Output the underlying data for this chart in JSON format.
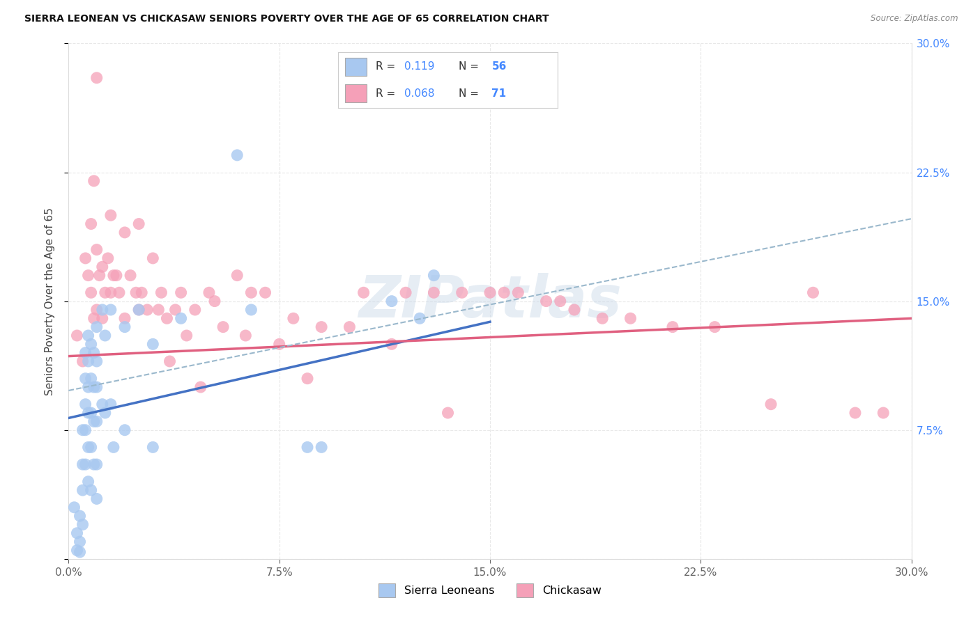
{
  "title": "SIERRA LEONEAN VS CHICKASAW SENIORS POVERTY OVER THE AGE OF 65 CORRELATION CHART",
  "source": "Source: ZipAtlas.com",
  "ylabel": "Seniors Poverty Over the Age of 65",
  "xlim": [
    0.0,
    0.3
  ],
  "ylim": [
    0.0,
    0.3
  ],
  "sl_color": "#a8c8f0",
  "chick_color": "#f5a0b8",
  "sl_line_color": "#4472c4",
  "chick_line_color": "#e06080",
  "combined_line_color": "#9ab8cc",
  "r_sl": "0.119",
  "n_sl": "56",
  "r_ch": "0.068",
  "n_ch": "71",
  "sl_trend_x0": 0.0,
  "sl_trend_y0": 0.082,
  "sl_trend_x1": 0.15,
  "sl_trend_y1": 0.138,
  "ch_trend_x0": 0.0,
  "ch_trend_y0": 0.118,
  "ch_trend_x1": 0.3,
  "ch_trend_y1": 0.14,
  "dash_trend_x0": 0.0,
  "dash_trend_y0": 0.098,
  "dash_trend_x1": 0.3,
  "dash_trend_y1": 0.198,
  "sierra_leonean_x": [
    0.002,
    0.003,
    0.003,
    0.004,
    0.004,
    0.004,
    0.005,
    0.005,
    0.005,
    0.005,
    0.006,
    0.006,
    0.006,
    0.006,
    0.006,
    0.007,
    0.007,
    0.007,
    0.007,
    0.007,
    0.007,
    0.008,
    0.008,
    0.008,
    0.008,
    0.008,
    0.009,
    0.009,
    0.009,
    0.009,
    0.01,
    0.01,
    0.01,
    0.01,
    0.01,
    0.01,
    0.012,
    0.012,
    0.013,
    0.013,
    0.015,
    0.015,
    0.016,
    0.02,
    0.02,
    0.025,
    0.03,
    0.03,
    0.04,
    0.06,
    0.065,
    0.085,
    0.09,
    0.115,
    0.125,
    0.13
  ],
  "sierra_leonean_y": [
    0.03,
    0.015,
    0.005,
    0.025,
    0.01,
    0.004,
    0.075,
    0.055,
    0.04,
    0.02,
    0.12,
    0.105,
    0.09,
    0.075,
    0.055,
    0.13,
    0.115,
    0.1,
    0.085,
    0.065,
    0.045,
    0.125,
    0.105,
    0.085,
    0.065,
    0.04,
    0.12,
    0.1,
    0.08,
    0.055,
    0.135,
    0.115,
    0.1,
    0.08,
    0.055,
    0.035,
    0.145,
    0.09,
    0.13,
    0.085,
    0.145,
    0.09,
    0.065,
    0.135,
    0.075,
    0.145,
    0.125,
    0.065,
    0.14,
    0.235,
    0.145,
    0.065,
    0.065,
    0.15,
    0.14,
    0.165
  ],
  "chickasaw_x": [
    0.003,
    0.005,
    0.006,
    0.007,
    0.008,
    0.008,
    0.009,
    0.009,
    0.01,
    0.01,
    0.01,
    0.011,
    0.012,
    0.012,
    0.013,
    0.014,
    0.015,
    0.015,
    0.016,
    0.017,
    0.018,
    0.02,
    0.02,
    0.022,
    0.024,
    0.025,
    0.025,
    0.026,
    0.028,
    0.03,
    0.032,
    0.033,
    0.035,
    0.036,
    0.038,
    0.04,
    0.042,
    0.045,
    0.047,
    0.05,
    0.052,
    0.055,
    0.06,
    0.063,
    0.065,
    0.07,
    0.075,
    0.08,
    0.085,
    0.09,
    0.1,
    0.105,
    0.115,
    0.12,
    0.13,
    0.135,
    0.14,
    0.15,
    0.16,
    0.17,
    0.18,
    0.19,
    0.2,
    0.215,
    0.23,
    0.25,
    0.265,
    0.28,
    0.29,
    0.155,
    0.175
  ],
  "chickasaw_y": [
    0.13,
    0.115,
    0.175,
    0.165,
    0.195,
    0.155,
    0.22,
    0.14,
    0.28,
    0.18,
    0.145,
    0.165,
    0.17,
    0.14,
    0.155,
    0.175,
    0.2,
    0.155,
    0.165,
    0.165,
    0.155,
    0.19,
    0.14,
    0.165,
    0.155,
    0.195,
    0.145,
    0.155,
    0.145,
    0.175,
    0.145,
    0.155,
    0.14,
    0.115,
    0.145,
    0.155,
    0.13,
    0.145,
    0.1,
    0.155,
    0.15,
    0.135,
    0.165,
    0.13,
    0.155,
    0.155,
    0.125,
    0.14,
    0.105,
    0.135,
    0.135,
    0.155,
    0.125,
    0.155,
    0.155,
    0.085,
    0.155,
    0.155,
    0.155,
    0.15,
    0.145,
    0.14,
    0.14,
    0.135,
    0.135,
    0.09,
    0.155,
    0.085,
    0.085,
    0.155,
    0.15
  ]
}
